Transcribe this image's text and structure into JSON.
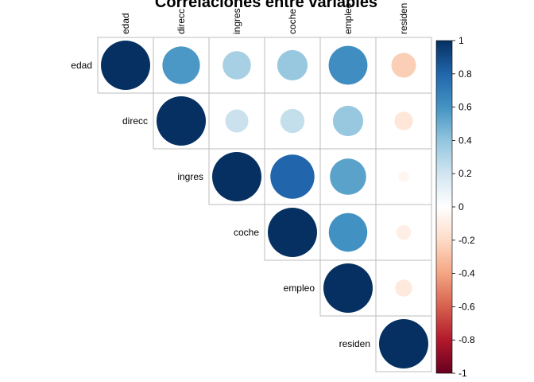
{
  "chart_data": {
    "type": "heatmap",
    "title": "Correlaciones entre variables",
    "variables": [
      "edad",
      "direcc",
      "ingres",
      "coche",
      "empleo",
      "residen"
    ],
    "column_labels": [
      "edad",
      "direcc",
      "ingres",
      "coche",
      "empleo",
      "residen"
    ],
    "row_labels": [
      "edad",
      "direcc",
      "ingres",
      "coche",
      "empleo",
      "residen"
    ],
    "layout": "upper",
    "method": "circle",
    "matrix": [
      [
        1.0,
        0.58,
        0.33,
        0.38,
        0.62,
        -0.25
      ],
      [
        null,
        1.0,
        0.22,
        0.24,
        0.38,
        -0.14
      ],
      [
        null,
        null,
        1.0,
        0.8,
        0.54,
        -0.05
      ],
      [
        null,
        null,
        null,
        1.0,
        0.61,
        -0.09
      ],
      [
        null,
        null,
        null,
        null,
        1.0,
        -0.12
      ],
      [
        null,
        null,
        null,
        null,
        null,
        1.0
      ]
    ],
    "colorbar": {
      "ticks": [
        "1",
        "0.8",
        "0.6",
        "0.4",
        "0.2",
        "0",
        "-0.2",
        "-0.4",
        "-0.6",
        "-0.8",
        "-1"
      ],
      "range": [
        -1,
        1
      ],
      "colors": [
        "#67001F",
        "#B2182B",
        "#D6604D",
        "#F4A582",
        "#FDDBC7",
        "#FFFFFF",
        "#D1E5F0",
        "#92C5DE",
        "#4393C3",
        "#2166AC",
        "#053061"
      ]
    },
    "grid_color": "#BEBEBE"
  }
}
